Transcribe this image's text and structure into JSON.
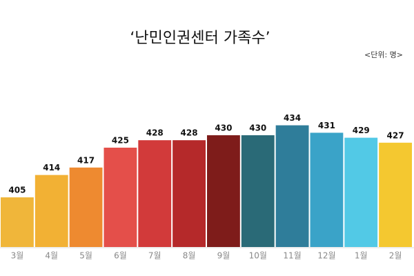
{
  "chart_data": {
    "type": "bar",
    "title": "‘난민인권센터 가족수’",
    "subtitle": "<단위: 명>",
    "categories": [
      "3월",
      "4월",
      "5월",
      "6월",
      "7월",
      "8월",
      "9월",
      "10월",
      "11월",
      "12월",
      "1월",
      "2월"
    ],
    "values": [
      405,
      414,
      417,
      425,
      428,
      428,
      430,
      430,
      434,
      431,
      429,
      427
    ],
    "colors": [
      "#f0b63a",
      "#f2b134",
      "#ee8a30",
      "#e44f4a",
      "#d23a3a",
      "#b5292a",
      "#7e1c1a",
      "#2a6a77",
      "#2f7d9a",
      "#3aa3c8",
      "#52c9e6",
      "#f4c830"
    ],
    "ylim": [
      385,
      440
    ]
  }
}
